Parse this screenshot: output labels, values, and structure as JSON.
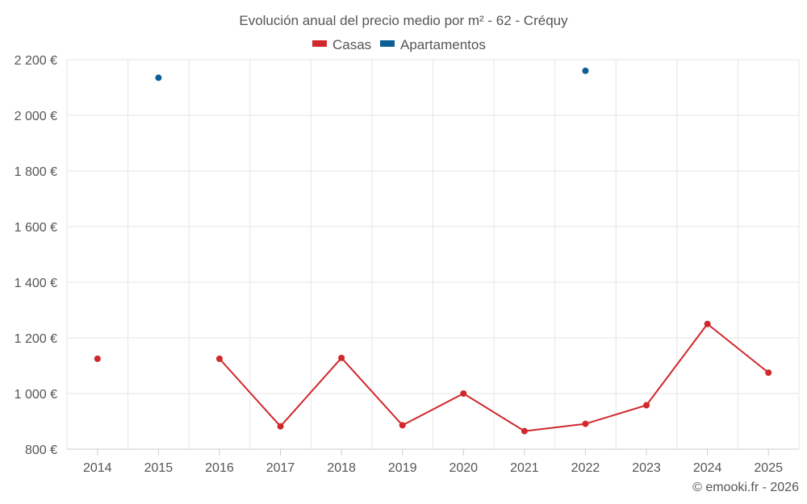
{
  "chart_data": {
    "type": "line",
    "title": "Evolución anual del precio medio por m² - 62 - Créquy",
    "categories": [
      "2014",
      "2015",
      "2016",
      "2017",
      "2018",
      "2019",
      "2020",
      "2021",
      "2022",
      "2023",
      "2024",
      "2025"
    ],
    "series": [
      {
        "name": "Casas",
        "color": "#d0282c",
        "values": [
          1125,
          null,
          1125,
          882,
          1128,
          886,
          1000,
          865,
          891,
          958,
          1250,
          1075
        ]
      },
      {
        "name": "Apartamentos",
        "color": "#0b5e96",
        "values": [
          null,
          2135,
          null,
          null,
          null,
          null,
          null,
          null,
          2160,
          null,
          null,
          null
        ]
      }
    ],
    "ylim": [
      800,
      2200
    ],
    "yticks": [
      800,
      1000,
      1200,
      1400,
      1600,
      1800,
      2000,
      2200
    ],
    "ytick_labels": [
      "800 €",
      "1 000 €",
      "1 200 €",
      "1 400 €",
      "1 600 €",
      "1 800 €",
      "2 000 €",
      "2 200 €"
    ],
    "xlabel": "",
    "ylabel": "",
    "grid": true,
    "legend_position": "top-center"
  },
  "credit": "© emooki.fr - 2026"
}
